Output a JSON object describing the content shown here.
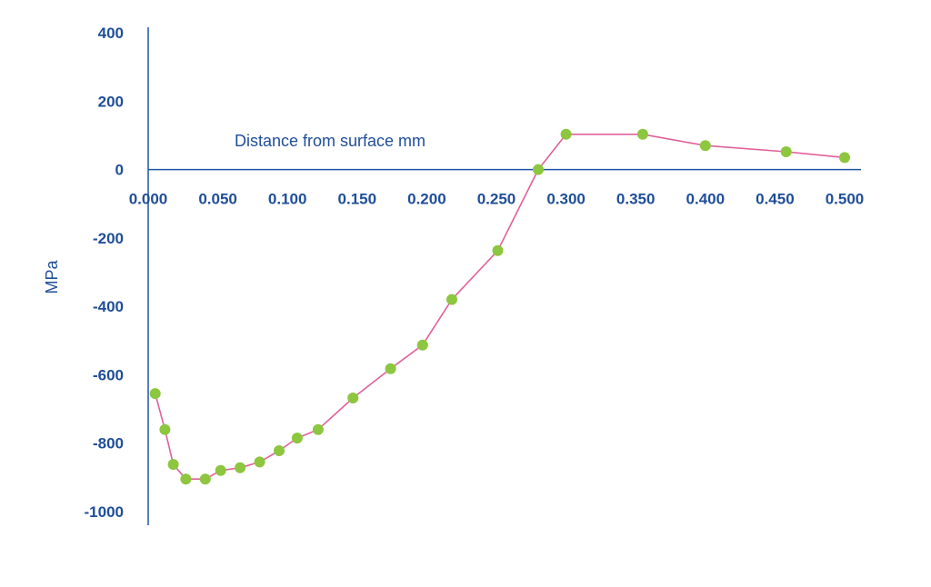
{
  "chart_data": {
    "type": "line",
    "title": "",
    "xlabel": "Distance from surface mm",
    "ylabel": "MPa",
    "xlim": [
      0,
      0.5
    ],
    "ylim": [
      -1000,
      400
    ],
    "x_ticks": [
      0,
      0.05,
      0.1,
      0.15,
      0.2,
      0.25,
      0.3,
      0.35,
      0.4,
      0.45,
      0.5
    ],
    "x_tick_labels": [
      "0.000",
      "0.050",
      "0.100",
      "0.150",
      "0.200",
      "0.250",
      "0.300",
      "0.350",
      "0.400",
      "0.450",
      "0.500"
    ],
    "y_ticks": [
      -1000,
      -800,
      -600,
      -400,
      -200,
      0,
      200,
      400
    ],
    "y_tick_labels": [
      "-1000",
      "-800",
      "-600",
      "-400",
      "-200",
      "0",
      "200",
      "400"
    ],
    "grid": false,
    "legend": "none",
    "colors": {
      "axis": "#1f55a5",
      "text": "#1f4e99",
      "line": "#e0609a",
      "marker": "#8dc63f"
    },
    "series": [
      {
        "x": [
          0.005,
          0.012,
          0.018,
          0.027,
          0.041,
          0.052,
          0.066,
          0.08,
          0.094,
          0.107,
          0.122,
          0.147,
          0.174,
          0.197,
          0.218,
          0.251,
          0.28,
          0.3,
          0.355,
          0.4,
          0.458,
          0.5
        ],
        "values": [
          -655,
          -760,
          -862,
          -905,
          -905,
          -880,
          -872,
          -855,
          -822,
          -785,
          -760,
          -668,
          -582,
          -513,
          -380,
          -237,
          0,
          103,
          103,
          70,
          52,
          35
        ]
      }
    ]
  }
}
